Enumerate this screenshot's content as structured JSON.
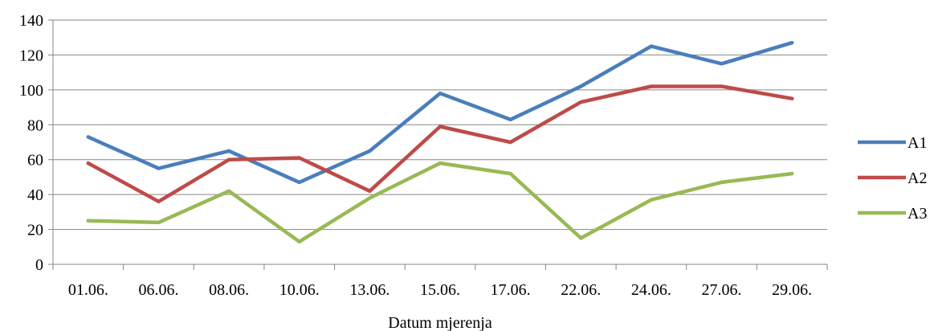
{
  "chart_data": {
    "type": "line",
    "title": "",
    "xlabel": "Datum mjerenja",
    "ylabel": "",
    "categories": [
      "01.06.",
      "06.06.",
      "08.06.",
      "10.06.",
      "13.06.",
      "15.06.",
      "17.06.",
      "22.06.",
      "24.06.",
      "27.06.",
      "29.06."
    ],
    "ylim": [
      0,
      140
    ],
    "yticks": [
      0,
      20,
      40,
      60,
      80,
      100,
      120,
      140
    ],
    "grid": true,
    "legend": "right",
    "series": [
      {
        "name": "A1",
        "color": "#4a7ebb",
        "values": [
          73,
          55,
          65,
          47,
          65,
          98,
          83,
          102,
          125,
          115,
          127
        ]
      },
      {
        "name": "A2",
        "color": "#be4b48",
        "values": [
          58,
          36,
          60,
          61,
          42,
          79,
          70,
          93,
          102,
          102,
          95
        ]
      },
      {
        "name": "A3",
        "color": "#98b954",
        "values": [
          25,
          24,
          42,
          13,
          38,
          58,
          52,
          15,
          37,
          47,
          52
        ]
      }
    ]
  }
}
